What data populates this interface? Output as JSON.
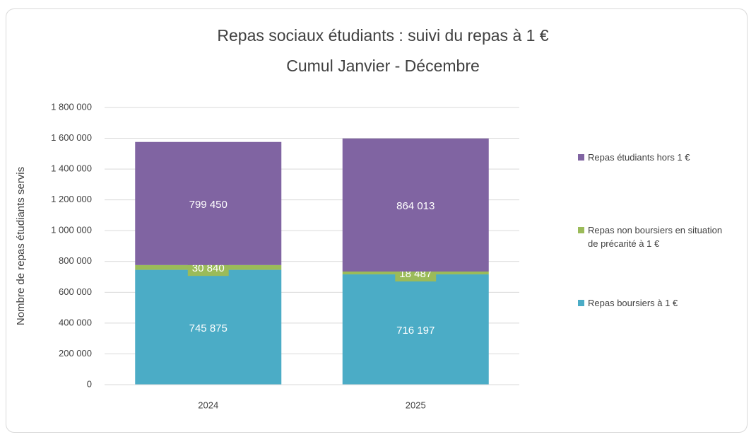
{
  "chart_data": {
    "type": "stacked_bar",
    "title": "Repas sociaux étudiants : suivi du repas à 1 €",
    "subtitle": "Cumul Janvier - Décembre",
    "ylabel": "Nombre de repas étudiants servis",
    "categories": [
      "2024",
      "2025"
    ],
    "series": [
      {
        "name": "Repas boursiers à 1 €",
        "color": "#4bacc6",
        "values": [
          745875,
          716197
        ],
        "value_labels": [
          "745 875",
          "716 197"
        ]
      },
      {
        "name": "Repas non boursiers en situation de précarité à 1 €",
        "color": "#9bbb59",
        "values": [
          30840,
          18487
        ],
        "value_labels": [
          "30 840",
          "18 487"
        ]
      },
      {
        "name": "Repas étudiants hors 1 €",
        "color": "#8064a2",
        "values": [
          799450,
          864013
        ],
        "value_labels": [
          "799 450",
          "864 013"
        ]
      }
    ],
    "ylim": [
      0,
      1800000
    ],
    "yticks": [
      0,
      {
        "value": 200000,
        "label": "200 000"
      },
      {
        "value": 400000,
        "label": "400 000"
      },
      {
        "value": 600000,
        "label": "600 000"
      },
      {
        "value": 800000,
        "label": "800 000"
      },
      {
        "value": 1000000,
        "label": "1 000 000"
      },
      {
        "value": 1200000,
        "label": "1 200 000"
      },
      {
        "value": 1400000,
        "label": "1 400 000"
      },
      {
        "value": 1600000,
        "label": "1 600 000"
      },
      {
        "value": 1800000,
        "label": "1 800 000"
      }
    ],
    "grid": true,
    "legend": "right"
  }
}
